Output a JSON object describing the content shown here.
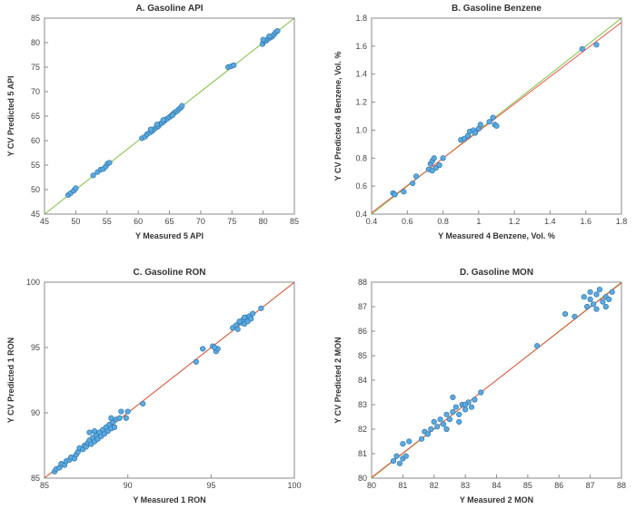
{
  "colors": {
    "point_fill": "#5aa9e0",
    "point_stroke": "#2a6fa3",
    "fit_green": "#7cc142",
    "fit_red": "#e8544a",
    "axis": "#8a8a8a"
  },
  "chart_data": [
    {
      "type": "scatter",
      "title": "A. Gasoline API",
      "xlabel": "Y Measured 5 API",
      "ylabel": "Y CV Predicted 5 API",
      "xlim": [
        45,
        85
      ],
      "ylim": [
        45,
        85
      ],
      "xticks": [
        "45",
        "50",
        "55",
        "60",
        "65",
        "70",
        "75",
        "80",
        "85"
      ],
      "yticks": [
        "45",
        "50",
        "55",
        "60",
        "65",
        "70",
        "75",
        "80",
        "85"
      ],
      "lines": [
        {
          "color": "green",
          "from": [
            45,
            45
          ],
          "to": [
            85,
            85
          ]
        }
      ],
      "points": [
        [
          48.8,
          48.9
        ],
        [
          49.2,
          49.3
        ],
        [
          49.7,
          49.8
        ],
        [
          50.0,
          50.3
        ],
        [
          52.8,
          52.9
        ],
        [
          53.5,
          53.6
        ],
        [
          54.0,
          54.1
        ],
        [
          54.4,
          54.2
        ],
        [
          54.8,
          54.7
        ],
        [
          55.1,
          55.3
        ],
        [
          55.4,
          55.5
        ],
        [
          60.6,
          60.5
        ],
        [
          61.1,
          60.8
        ],
        [
          61.4,
          61.3
        ],
        [
          61.8,
          61.6
        ],
        [
          62.2,
          61.9
        ],
        [
          62.5,
          62.3
        ],
        [
          62.9,
          62.7
        ],
        [
          63.2,
          62.9
        ],
        [
          63.5,
          63.4
        ],
        [
          63.8,
          63.6
        ],
        [
          64.1,
          63.9
        ],
        [
          64.4,
          64.3
        ],
        [
          64.7,
          64.5
        ],
        [
          65.0,
          64.8
        ],
        [
          65.3,
          65.1
        ],
        [
          65.6,
          65.5
        ],
        [
          65.9,
          65.8
        ],
        [
          66.2,
          66.0
        ],
        [
          66.5,
          66.4
        ],
        [
          66.8,
          66.7
        ],
        [
          67.0,
          67.1
        ],
        [
          63.0,
          63.3
        ],
        [
          64.0,
          64.2
        ],
        [
          65.5,
          65.2
        ],
        [
          62.0,
          62.3
        ],
        [
          74.4,
          75.0
        ],
        [
          74.9,
          75.2
        ],
        [
          75.3,
          75.4
        ],
        [
          79.9,
          79.7
        ],
        [
          80.2,
          80.3
        ],
        [
          80.5,
          80.4
        ],
        [
          80.8,
          80.8
        ],
        [
          81.1,
          81.0
        ],
        [
          81.4,
          81.2
        ],
        [
          81.7,
          81.6
        ],
        [
          82.0,
          82.1
        ],
        [
          82.3,
          82.4
        ],
        [
          80.0,
          80.6
        ],
        [
          81.0,
          81.3
        ]
      ]
    },
    {
      "type": "scatter",
      "title": "B. Gasoline Benzene",
      "xlabel": "Y Measured 4 Benzene, Vol. %",
      "ylabel": "Y CV Predicted 4 Benzene, Vol. %",
      "xlim": [
        0.4,
        1.8
      ],
      "ylim": [
        0.4,
        1.8
      ],
      "xticks": [
        "0.4",
        "0.6",
        "0.8",
        "1",
        "1.2",
        "1.4",
        "1.6",
        "1.8"
      ],
      "yticks": [
        "0.4",
        "0.6",
        "0.8",
        "1.0",
        "1.2",
        "1.4",
        "1.6",
        "1.8"
      ],
      "lines": [
        {
          "color": "green",
          "from": [
            0.4,
            0.4
          ],
          "to": [
            1.8,
            1.8
          ]
        },
        {
          "color": "red",
          "from": [
            0.4,
            0.41
          ],
          "to": [
            1.8,
            1.77
          ]
        }
      ],
      "points": [
        [
          0.52,
          0.55
        ],
        [
          0.53,
          0.54
        ],
        [
          0.58,
          0.56
        ],
        [
          0.63,
          0.62
        ],
        [
          0.65,
          0.67
        ],
        [
          0.72,
          0.72
        ],
        [
          0.73,
          0.76
        ],
        [
          0.74,
          0.78
        ],
        [
          0.75,
          0.8
        ],
        [
          0.76,
          0.73
        ],
        [
          0.78,
          0.75
        ],
        [
          0.8,
          0.8
        ],
        [
          0.74,
          0.71
        ],
        [
          0.9,
          0.93
        ],
        [
          0.92,
          0.94
        ],
        [
          0.94,
          0.96
        ],
        [
          0.95,
          0.99
        ],
        [
          0.97,
          1.0
        ],
        [
          0.98,
          0.98
        ],
        [
          1.0,
          1.01
        ],
        [
          1.01,
          1.04
        ],
        [
          1.06,
          1.06
        ],
        [
          1.08,
          1.09
        ],
        [
          1.09,
          1.04
        ],
        [
          1.1,
          1.03
        ],
        [
          1.58,
          1.58
        ],
        [
          1.66,
          1.61
        ]
      ]
    },
    {
      "type": "scatter",
      "title": "C. Gasoline RON",
      "xlabel": "Y Measured 1 RON",
      "ylabel": "Y CV Predicted 1 RON",
      "xlim": [
        85,
        100
      ],
      "ylim": [
        85,
        100
      ],
      "xticks": [
        "85",
        "90",
        "95",
        "100"
      ],
      "yticks": [
        "85",
        "90",
        "95",
        "100"
      ],
      "lines": [
        {
          "color": "green",
          "from": [
            85,
            85
          ],
          "to": [
            100,
            100
          ]
        },
        {
          "color": "red",
          "from": [
            85,
            85.02
          ],
          "to": [
            100,
            99.98
          ]
        }
      ],
      "points": [
        [
          85.6,
          85.5
        ],
        [
          85.7,
          85.7
        ],
        [
          85.9,
          85.8
        ],
        [
          86.0,
          86.1
        ],
        [
          86.2,
          86.0
        ],
        [
          86.3,
          86.3
        ],
        [
          86.5,
          86.4
        ],
        [
          86.6,
          86.6
        ],
        [
          86.8,
          86.5
        ],
        [
          86.9,
          86.8
        ],
        [
          87.0,
          87.0
        ],
        [
          87.1,
          87.3
        ],
        [
          87.3,
          87.2
        ],
        [
          87.4,
          87.5
        ],
        [
          87.5,
          87.4
        ],
        [
          87.6,
          87.7
        ],
        [
          87.7,
          87.9
        ],
        [
          87.8,
          87.6
        ],
        [
          87.9,
          88.1
        ],
        [
          88.0,
          87.8
        ],
        [
          88.1,
          88.3
        ],
        [
          88.2,
          88.0
        ],
        [
          88.3,
          88.5
        ],
        [
          88.4,
          88.2
        ],
        [
          88.5,
          88.7
        ],
        [
          88.6,
          88.4
        ],
        [
          88.7,
          88.9
        ],
        [
          88.8,
          88.6
        ],
        [
          88.9,
          89.1
        ],
        [
          89.0,
          88.8
        ],
        [
          89.1,
          89.3
        ],
        [
          89.2,
          88.9
        ],
        [
          88.0,
          88.6
        ],
        [
          87.7,
          88.5
        ],
        [
          89.3,
          89.5
        ],
        [
          89.0,
          89.6
        ],
        [
          89.5,
          89.6
        ],
        [
          90.0,
          90.1
        ],
        [
          89.6,
          90.1
        ],
        [
          89.9,
          89.6
        ],
        [
          90.9,
          90.7
        ],
        [
          94.1,
          93.9
        ],
        [
          94.5,
          94.9
        ],
        [
          95.1,
          95.1
        ],
        [
          95.3,
          94.7
        ],
        [
          95.4,
          94.9
        ],
        [
          95.2,
          95.0
        ],
        [
          96.3,
          96.5
        ],
        [
          96.5,
          96.7
        ],
        [
          96.6,
          96.4
        ],
        [
          96.8,
          96.9
        ],
        [
          96.9,
          97.1
        ],
        [
          97.0,
          96.8
        ],
        [
          97.1,
          97.3
        ],
        [
          97.2,
          97.0
        ],
        [
          97.3,
          97.4
        ],
        [
          97.4,
          97.2
        ],
        [
          97.5,
          97.6
        ],
        [
          96.7,
          97.0
        ],
        [
          97.0,
          97.3
        ],
        [
          98.0,
          98.0
        ]
      ]
    },
    {
      "type": "scatter",
      "title": "D. Gasoline MON",
      "xlabel": "Y Measured 2 MON",
      "ylabel": "Y CV Predicted 2 MON",
      "xlim": [
        80,
        88
      ],
      "ylim": [
        80,
        88
      ],
      "xticks": [
        "80",
        "81",
        "82",
        "83",
        "84",
        "85",
        "86",
        "87",
        "88"
      ],
      "yticks": [
        "80",
        "81",
        "82",
        "83",
        "84",
        "85",
        "86",
        "87",
        "88"
      ],
      "lines": [
        {
          "color": "green",
          "from": [
            80,
            80
          ],
          "to": [
            88,
            88
          ]
        },
        {
          "color": "red",
          "from": [
            80,
            80.03
          ],
          "to": [
            88,
            87.97
          ]
        }
      ],
      "points": [
        [
          80.7,
          80.7
        ],
        [
          80.8,
          80.9
        ],
        [
          80.9,
          80.6
        ],
        [
          81.0,
          80.8
        ],
        [
          81.1,
          80.9
        ],
        [
          81.0,
          81.4
        ],
        [
          81.2,
          81.5
        ],
        [
          81.6,
          81.6
        ],
        [
          81.7,
          81.9
        ],
        [
          81.8,
          81.8
        ],
        [
          81.9,
          82.0
        ],
        [
          82.0,
          82.3
        ],
        [
          82.1,
          82.1
        ],
        [
          82.2,
          82.4
        ],
        [
          82.3,
          82.2
        ],
        [
          82.4,
          82.6
        ],
        [
          82.5,
          82.4
        ],
        [
          82.6,
          82.7
        ],
        [
          82.7,
          82.9
        ],
        [
          82.8,
          82.6
        ],
        [
          82.9,
          83.0
        ],
        [
          83.0,
          82.8
        ],
        [
          83.1,
          83.1
        ],
        [
          83.2,
          82.9
        ],
        [
          83.3,
          83.2
        ],
        [
          82.6,
          83.3
        ],
        [
          82.8,
          82.3
        ],
        [
          83.0,
          83.0
        ],
        [
          82.4,
          82.0
        ],
        [
          83.5,
          83.5
        ],
        [
          85.3,
          85.4
        ],
        [
          86.2,
          86.7
        ],
        [
          86.5,
          86.6
        ],
        [
          86.8,
          87.4
        ],
        [
          86.9,
          87.0
        ],
        [
          87.0,
          87.3
        ],
        [
          87.1,
          87.1
        ],
        [
          87.2,
          87.5
        ],
        [
          87.3,
          87.7
        ],
        [
          87.4,
          87.2
        ],
        [
          87.5,
          87.4
        ],
        [
          87.6,
          87.3
        ],
        [
          87.7,
          87.6
        ],
        [
          87.0,
          87.6
        ],
        [
          87.2,
          86.9
        ],
        [
          87.5,
          87.0
        ]
      ]
    }
  ]
}
